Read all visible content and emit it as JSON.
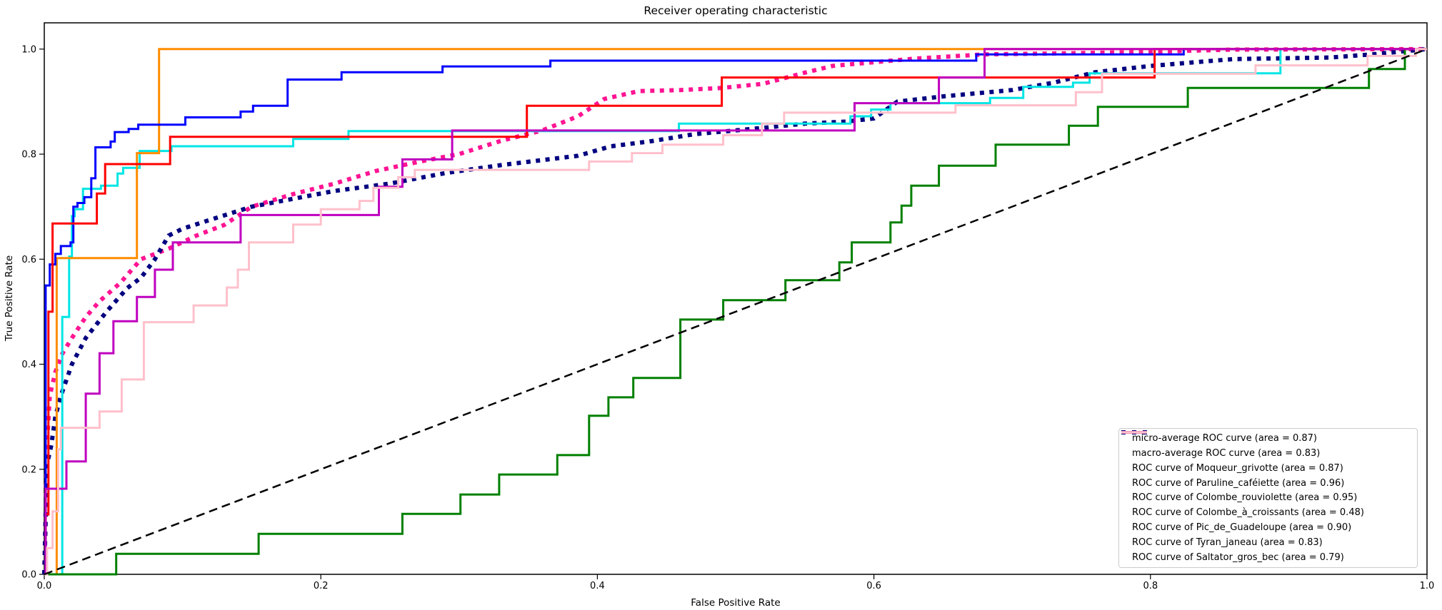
{
  "title": "Receiver operating characteristic",
  "axes": {
    "xlabel": "False Positive Rate",
    "ylabel": "True Positive Rate",
    "xticks": [
      "0.0",
      "0.2",
      "0.4",
      "0.6",
      "0.8",
      "1.0"
    ],
    "yticks": [
      "0.0",
      "0.2",
      "0.4",
      "0.6",
      "0.8",
      "1.0"
    ],
    "xlim": [
      0,
      1.0
    ],
    "ylim": [
      0,
      1.05
    ],
    "grid": false
  },
  "legend": {
    "position": "lower right",
    "items": [
      "micro-average ROC curve (area = 0.87)",
      "macro-average ROC curve (area = 0.83)",
      "ROC curve of Moqueur_grivotte (area = 0.87)",
      "ROC curve of Paruline_caféiette (area = 0.96)",
      "ROC curve of Colombe_rouviolette (area = 0.95)",
      "ROC curve of Colombe_à_croissants (area = 0.48)",
      "ROC curve of Pic_de_Guadeloupe (area = 0.90)",
      "ROC curve of Tyran_janeau (area = 0.83)",
      "ROC curve of Saltator_gros_bec (area = 0.79)"
    ]
  },
  "chart_data": {
    "type": "line",
    "title": "Receiver operating characteristic",
    "xlabel": "False Positive Rate",
    "ylabel": "True Positive Rate",
    "series": [
      {
        "name": "micro-average",
        "auc": 0.87,
        "color": "#FF1493",
        "style": "dotted",
        "width": 6,
        "step": false,
        "points": [
          [
            0,
            0
          ],
          [
            0.002,
            0.25
          ],
          [
            0.004,
            0.34
          ],
          [
            0.008,
            0.385
          ],
          [
            0.013,
            0.42
          ],
          [
            0.02,
            0.45
          ],
          [
            0.03,
            0.49
          ],
          [
            0.04,
            0.52
          ],
          [
            0.055,
            0.555
          ],
          [
            0.07,
            0.6
          ],
          [
            0.09,
            0.62
          ],
          [
            0.11,
            0.645
          ],
          [
            0.13,
            0.665
          ],
          [
            0.15,
            0.7
          ],
          [
            0.18,
            0.724
          ],
          [
            0.21,
            0.744
          ],
          [
            0.24,
            0.768
          ],
          [
            0.27,
            0.785
          ],
          [
            0.3,
            0.8
          ],
          [
            0.33,
            0.825
          ],
          [
            0.36,
            0.845
          ],
          [
            0.386,
            0.872
          ],
          [
            0.405,
            0.905
          ],
          [
            0.43,
            0.92
          ],
          [
            0.46,
            0.922
          ],
          [
            0.49,
            0.926
          ],
          [
            0.52,
            0.934
          ],
          [
            0.55,
            0.955
          ],
          [
            0.57,
            0.968
          ],
          [
            0.6,
            0.975
          ],
          [
            0.63,
            0.982
          ],
          [
            0.68,
            0.99
          ],
          [
            0.74,
            0.992
          ],
          [
            0.8,
            0.995
          ],
          [
            0.86,
            0.999
          ],
          [
            1,
            1
          ]
        ]
      },
      {
        "name": "macro-average",
        "auc": 0.83,
        "color": "#000080",
        "style": "dotted",
        "width": 6,
        "step": false,
        "points": [
          [
            0,
            0
          ],
          [
            0.002,
            0.21
          ],
          [
            0.005,
            0.245
          ],
          [
            0.008,
            0.3
          ],
          [
            0.012,
            0.34
          ],
          [
            0.02,
            0.4
          ],
          [
            0.03,
            0.45
          ],
          [
            0.045,
            0.5
          ],
          [
            0.06,
            0.545
          ],
          [
            0.07,
            0.565
          ],
          [
            0.08,
            0.6
          ],
          [
            0.09,
            0.645
          ],
          [
            0.1,
            0.658
          ],
          [
            0.12,
            0.675
          ],
          [
            0.15,
            0.7
          ],
          [
            0.18,
            0.715
          ],
          [
            0.21,
            0.73
          ],
          [
            0.25,
            0.744
          ],
          [
            0.29,
            0.764
          ],
          [
            0.33,
            0.779
          ],
          [
            0.386,
            0.797
          ],
          [
            0.41,
            0.815
          ],
          [
            0.44,
            0.825
          ],
          [
            0.47,
            0.838
          ],
          [
            0.52,
            0.85
          ],
          [
            0.55,
            0.858
          ],
          [
            0.58,
            0.862
          ],
          [
            0.6,
            0.868
          ],
          [
            0.617,
            0.9
          ],
          [
            0.65,
            0.91
          ],
          [
            0.7,
            0.922
          ],
          [
            0.73,
            0.936
          ],
          [
            0.76,
            0.956
          ],
          [
            0.8,
            0.968
          ],
          [
            0.86,
            0.981
          ],
          [
            0.93,
            0.984
          ],
          [
            0.96,
            0.99
          ],
          [
            1,
            1
          ]
        ]
      },
      {
        "name": "Moqueur_grivotte",
        "auc": 0.87,
        "color": "#00E5E5",
        "style": "solid",
        "width": 3,
        "step": true,
        "points": [
          [
            0,
            0
          ],
          [
            0.013,
            0.49
          ],
          [
            0.018,
            0.605
          ],
          [
            0.02,
            0.682
          ],
          [
            0.022,
            0.695
          ],
          [
            0.028,
            0.734
          ],
          [
            0.041,
            0.74
          ],
          [
            0.053,
            0.763
          ],
          [
            0.057,
            0.774
          ],
          [
            0.069,
            0.806
          ],
          [
            0.092,
            0.815
          ],
          [
            0.18,
            0.829
          ],
          [
            0.22,
            0.844
          ],
          [
            0.459,
            0.858
          ],
          [
            0.583,
            0.872
          ],
          [
            0.598,
            0.885
          ],
          [
            0.612,
            0.897
          ],
          [
            0.684,
            0.907
          ],
          [
            0.708,
            0.928
          ],
          [
            0.744,
            0.936
          ],
          [
            0.756,
            0.954
          ],
          [
            0.894,
            1.0
          ],
          [
            1,
            1
          ]
        ]
      },
      {
        "name": "Paruline_caféiette",
        "auc": 0.96,
        "color": "#FF8C00",
        "style": "solid",
        "width": 3,
        "step": true,
        "points": [
          [
            0,
            0
          ],
          [
            0.009,
            0.602
          ],
          [
            0.067,
            0.802
          ],
          [
            0.083,
            1.0
          ],
          [
            1,
            1
          ]
        ]
      },
      {
        "name": "Colombe_rouviolette",
        "auc": 0.95,
        "color": "#0000FF",
        "style": "solid",
        "width": 3,
        "step": true,
        "points": [
          [
            0,
            0
          ],
          [
            0.001,
            0.55
          ],
          [
            0.004,
            0.59
          ],
          [
            0.008,
            0.61
          ],
          [
            0.012,
            0.625
          ],
          [
            0.019,
            0.632
          ],
          [
            0.021,
            0.7
          ],
          [
            0.024,
            0.707
          ],
          [
            0.029,
            0.718
          ],
          [
            0.034,
            0.754
          ],
          [
            0.037,
            0.813
          ],
          [
            0.048,
            0.824
          ],
          [
            0.051,
            0.842
          ],
          [
            0.061,
            0.848
          ],
          [
            0.068,
            0.856
          ],
          [
            0.102,
            0.87
          ],
          [
            0.142,
            0.881
          ],
          [
            0.151,
            0.892
          ],
          [
            0.176,
            0.942
          ],
          [
            0.215,
            0.956
          ],
          [
            0.288,
            0.967
          ],
          [
            0.366,
            0.978
          ],
          [
            0.674,
            0.99
          ],
          [
            0.824,
            1.0
          ],
          [
            1,
            1
          ]
        ]
      },
      {
        "name": "Colombe_à_croissants",
        "auc": 0.48,
        "color": "#008000",
        "style": "solid",
        "width": 3,
        "step": true,
        "points": [
          [
            0,
            0
          ],
          [
            0.052,
            0.039
          ],
          [
            0.155,
            0.077
          ],
          [
            0.259,
            0.115
          ],
          [
            0.301,
            0.152
          ],
          [
            0.329,
            0.19
          ],
          [
            0.371,
            0.227
          ],
          [
            0.394,
            0.302
          ],
          [
            0.408,
            0.337
          ],
          [
            0.426,
            0.374
          ],
          [
            0.46,
            0.485
          ],
          [
            0.491,
            0.522
          ],
          [
            0.536,
            0.56
          ],
          [
            0.575,
            0.594
          ],
          [
            0.584,
            0.632
          ],
          [
            0.612,
            0.67
          ],
          [
            0.62,
            0.702
          ],
          [
            0.627,
            0.74
          ],
          [
            0.647,
            0.778
          ],
          [
            0.688,
            0.818
          ],
          [
            0.741,
            0.854
          ],
          [
            0.762,
            0.89
          ],
          [
            0.827,
            0.926
          ],
          [
            0.958,
            0.962
          ],
          [
            0.984,
            1.0
          ],
          [
            1,
            1
          ]
        ]
      },
      {
        "name": "Pic_de_Guadeloupe",
        "auc": 0.9,
        "color": "#FF0000",
        "style": "solid",
        "width": 3,
        "step": true,
        "points": [
          [
            0,
            0
          ],
          [
            0.001,
            0.114
          ],
          [
            0.003,
            0.5
          ],
          [
            0.006,
            0.668
          ],
          [
            0.038,
            0.725
          ],
          [
            0.044,
            0.781
          ],
          [
            0.091,
            0.833
          ],
          [
            0.349,
            0.892
          ],
          [
            0.49,
            0.946
          ],
          [
            0.803,
            1.0
          ],
          [
            1,
            1
          ]
        ]
      },
      {
        "name": "Tyran_janeau",
        "auc": 0.83,
        "color": "#BF00BF",
        "style": "solid",
        "width": 3,
        "step": true,
        "points": [
          [
            0,
            0
          ],
          [
            0.001,
            0.163
          ],
          [
            0.016,
            0.215
          ],
          [
            0.03,
            0.344
          ],
          [
            0.04,
            0.421
          ],
          [
            0.05,
            0.482
          ],
          [
            0.067,
            0.528
          ],
          [
            0.08,
            0.58
          ],
          [
            0.093,
            0.632
          ],
          [
            0.142,
            0.684
          ],
          [
            0.242,
            0.738
          ],
          [
            0.259,
            0.79
          ],
          [
            0.295,
            0.845
          ],
          [
            0.586,
            0.897
          ],
          [
            0.647,
            0.946
          ],
          [
            0.68,
            1.0
          ],
          [
            1,
            1
          ]
        ]
      },
      {
        "name": "Saltator_gros_bec",
        "auc": 0.79,
        "color": "#FFC0CB",
        "style": "solid",
        "width": 3,
        "step": true,
        "points": [
          [
            0,
            0
          ],
          [
            0.002,
            0.05
          ],
          [
            0.006,
            0.12
          ],
          [
            0.01,
            0.238
          ],
          [
            0.012,
            0.279
          ],
          [
            0.04,
            0.31
          ],
          [
            0.056,
            0.371
          ],
          [
            0.072,
            0.48
          ],
          [
            0.108,
            0.512
          ],
          [
            0.132,
            0.546
          ],
          [
            0.14,
            0.58
          ],
          [
            0.148,
            0.632
          ],
          [
            0.18,
            0.666
          ],
          [
            0.2,
            0.695
          ],
          [
            0.228,
            0.711
          ],
          [
            0.238,
            0.736
          ],
          [
            0.256,
            0.756
          ],
          [
            0.268,
            0.77
          ],
          [
            0.394,
            0.786
          ],
          [
            0.425,
            0.802
          ],
          [
            0.447,
            0.818
          ],
          [
            0.491,
            0.836
          ],
          [
            0.519,
            0.858
          ],
          [
            0.535,
            0.879
          ],
          [
            0.659,
            0.893
          ],
          [
            0.746,
            0.918
          ],
          [
            0.765,
            0.953
          ],
          [
            0.876,
            0.969
          ],
          [
            0.957,
            0.987
          ],
          [
            0.992,
            1.0
          ],
          [
            1,
            1
          ]
        ]
      }
    ],
    "reference_line": {
      "name": "chance",
      "color": "#000000",
      "style": "dashed",
      "width": 2.5,
      "points": [
        [
          0,
          0
        ],
        [
          1,
          1
        ]
      ]
    }
  }
}
